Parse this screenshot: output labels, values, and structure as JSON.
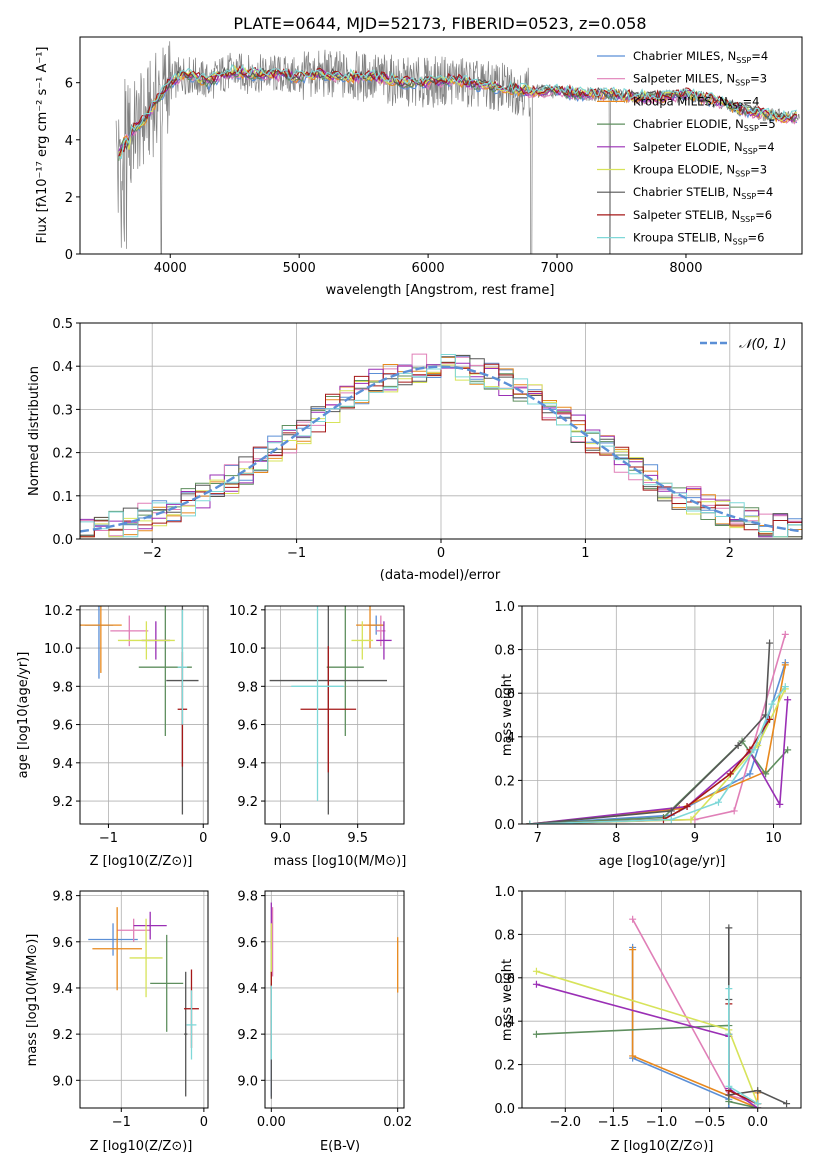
{
  "title": "PLATE=0644, MJD=52173, FIBERID=0523, z=0.058",
  "colors": {
    "palette": [
      "#5b8fd6",
      "#e07fb7",
      "#e8891e",
      "#5f8f5f",
      "#9a2fb5",
      "#d7e35a",
      "#555555",
      "#a51818",
      "#7fd8d8"
    ],
    "data_spectrum": "#808080"
  },
  "chart_data": [
    {
      "id": "spectrum",
      "type": "line",
      "title": "PLATE=0644, MJD=52173, FIBERID=0523, z=0.058",
      "xlabel": "wavelength [Angstrom, rest frame]",
      "ylabel": "Flux [fλ10⁻¹⁷ erg cm⁻² s⁻¹ A⁻¹]",
      "xlim": [
        3300,
        8900
      ],
      "ylim": [
        0,
        7.6
      ],
      "xticks": [
        4000,
        5000,
        6000,
        7000,
        8000
      ],
      "yticks": [
        0,
        2,
        4,
        6
      ],
      "grid": false,
      "legend_position": "top-right",
      "x": [
        3600,
        3650,
        3700,
        3800,
        3900,
        4000,
        4100,
        4200,
        4300,
        4400,
        4500,
        4600,
        4800,
        5000,
        5200,
        5400,
        5600,
        5800,
        6000,
        6200,
        6400,
        6600,
        6800,
        7000,
        7200,
        7400,
        7600,
        7800,
        8000,
        8200,
        8400,
        8600,
        8800
      ],
      "model": [
        3.8,
        4.4,
        4.3,
        4.7,
        5.4,
        6.0,
        6.3,
        6.2,
        6.0,
        6.3,
        6.4,
        6.3,
        6.3,
        6.2,
        6.3,
        6.2,
        6.2,
        6.0,
        6.0,
        6.1,
        5.9,
        5.8,
        5.7,
        5.7,
        5.6,
        5.6,
        5.5,
        5.5,
        5.6,
        5.4,
        5.1,
        4.9,
        4.8
      ],
      "series": [
        {
          "name": "Chabrier MILES, N$_{SSP}$=4",
          "label": "Chabrier MILES, N",
          "sub": "SSP",
          "tail": "=4"
        },
        {
          "name": "Salpeter MILES, N$_{SSP}$=3",
          "label": "Salpeter MILES, N",
          "sub": "SSP",
          "tail": "=3"
        },
        {
          "name": "Kroupa MILES, N$_{SSP}$=4",
          "label": "Kroupa MILES, N",
          "sub": "SSP",
          "tail": "=4"
        },
        {
          "name": "Chabrier ELODIE, N$_{SSP}$=5",
          "label": "Chabrier ELODIE, N",
          "sub": "SSP",
          "tail": "=5"
        },
        {
          "name": "Salpeter ELODIE, N$_{SSP}$=4",
          "label": "Salpeter ELODIE, N",
          "sub": "SSP",
          "tail": "=4"
        },
        {
          "name": "Kroupa ELODIE, N$_{SSP}$=3",
          "label": "Kroupa ELODIE, N",
          "sub": "SSP",
          "tail": "=3"
        },
        {
          "name": "Chabrier STELIB, N$_{SSP}$=4",
          "label": "Chabrier STELIB, N",
          "sub": "SSP",
          "tail": "=4"
        },
        {
          "name": "Salpeter STELIB, N$_{SSP}$=6",
          "label": "Salpeter STELIB, N",
          "sub": "SSP",
          "tail": "=6"
        },
        {
          "name": "Kroupa STELIB, N$_{SSP}$=6",
          "label": "Kroupa STELIB, N",
          "sub": "SSP",
          "tail": "=6"
        }
      ]
    },
    {
      "id": "residuals",
      "type": "line",
      "xlabel": "(data-model)/error",
      "ylabel": "Normed distribution",
      "xlim": [
        -2.5,
        2.5
      ],
      "ylim": [
        0,
        0.5
      ],
      "xticks": [
        -2,
        -1,
        0,
        1,
        2
      ],
      "yticks": [
        0.0,
        0.1,
        0.2,
        0.3,
        0.4,
        0.5
      ],
      "grid": true,
      "legend_position": "top-right",
      "reference_label": "𝒩(0, 1)",
      "bin_width": 0.1,
      "x_start": -2.5
    },
    {
      "id": "age_vs_Z",
      "type": "scatter",
      "xlabel": "Z [log10(Z/Z⊙)]",
      "ylabel": "age  [log10(age/yr)]",
      "xlim": [
        -1.3,
        0.05
      ],
      "ylim": [
        9.08,
        10.22
      ],
      "xticks": [
        -1,
        0
      ],
      "yticks": [
        9.2,
        9.4,
        9.6,
        9.8,
        10.0,
        10.2
      ],
      "grid": true,
      "points": [
        {
          "x": -1.1,
          "y": 10.12,
          "dx": 0.15,
          "dy": 0.28
        },
        {
          "x": -0.78,
          "y": 10.09,
          "dx": 0.2,
          "dy": 0.08
        },
        {
          "x": -1.08,
          "y": 10.12,
          "dx": 0.22,
          "dy": 0.25
        },
        {
          "x": -0.4,
          "y": 9.9,
          "dx": 0.28,
          "dy": 0.36
        },
        {
          "x": -0.5,
          "y": 10.04,
          "dx": 0.15,
          "dy": 0.1
        },
        {
          "x": -0.6,
          "y": 10.04,
          "dx": 0.3,
          "dy": 0.1
        },
        {
          "x": -0.22,
          "y": 9.83,
          "dx": 0.17,
          "dy": 0.7
        },
        {
          "x": -0.22,
          "y": 9.68,
          "dx": 0.05,
          "dy": 0.3
        },
        {
          "x": -0.22,
          "y": 9.9,
          "dx": 0.05,
          "dy": 0.3
        }
      ]
    },
    {
      "id": "age_vs_mass",
      "type": "scatter",
      "xlabel": "mass [log10(M/M⊙)]",
      "ylabel": "",
      "xlim": [
        8.9,
        9.8
      ],
      "ylim": [
        9.08,
        10.22
      ],
      "xticks": [
        9.0,
        9.5
      ],
      "yticks": [
        9.2,
        9.4,
        9.6,
        9.8,
        10.0,
        10.2
      ],
      "grid": true,
      "points": [
        {
          "x": 9.62,
          "y": 10.12,
          "dx": 0.05,
          "dy": 0.05
        },
        {
          "x": 9.65,
          "y": 10.09,
          "dx": 0.03,
          "dy": 0.08
        },
        {
          "x": 9.58,
          "y": 10.12,
          "dx": 0.09,
          "dy": 0.12
        },
        {
          "x": 9.42,
          "y": 9.9,
          "dx": 0.12,
          "dy": 0.36
        },
        {
          "x": 9.67,
          "y": 10.04,
          "dx": 0.05,
          "dy": 0.1
        },
        {
          "x": 9.53,
          "y": 10.04,
          "dx": 0.07,
          "dy": 0.1
        },
        {
          "x": 9.31,
          "y": 9.83,
          "dx": 0.38,
          "dy": 0.7
        },
        {
          "x": 9.31,
          "y": 9.68,
          "dx": 0.18,
          "dy": 0.33
        },
        {
          "x": 9.24,
          "y": 9.8,
          "dx": 0.17,
          "dy": 0.6
        }
      ]
    },
    {
      "id": "weight_vs_age",
      "type": "line",
      "xlabel": "age  [log10(age/yr)]",
      "ylabel": "mass weight",
      "xlim": [
        6.8,
        10.35
      ],
      "ylim": [
        0,
        1.0
      ],
      "xticks": [
        7,
        8,
        9,
        10
      ],
      "yticks": [
        0.0,
        0.2,
        0.4,
        0.6,
        0.8,
        1.0
      ],
      "grid": true,
      "series": [
        {
          "x": [
            6.9,
            8.7,
            9.7,
            10.15
          ],
          "y": [
            0.0,
            0.04,
            0.23,
            0.74
          ]
        },
        {
          "x": [
            6.9,
            9.0,
            9.5,
            10.15
          ],
          "y": [
            0.0,
            0.02,
            0.06,
            0.87
          ]
        },
        {
          "x": [
            6.9,
            8.8,
            9.9,
            10.15
          ],
          "y": [
            0.0,
            0.07,
            0.24,
            0.73
          ]
        },
        {
          "x": [
            6.9,
            8.6,
            9.6,
            9.9,
            10.18
          ],
          "y": [
            0.0,
            0.03,
            0.38,
            0.23,
            0.34
          ]
        },
        {
          "x": [
            6.9,
            8.9,
            9.7,
            10.08,
            10.18
          ],
          "y": [
            0.0,
            0.08,
            0.33,
            0.09,
            0.57
          ]
        },
        {
          "x": [
            6.9,
            8.95,
            9.8,
            10.15
          ],
          "y": [
            0.0,
            0.02,
            0.36,
            0.62
          ]
        },
        {
          "x": [
            6.9,
            8.7,
            9.55,
            9.9,
            9.95
          ],
          "y": [
            0.0,
            0.06,
            0.36,
            0.5,
            0.83
          ]
        },
        {
          "x": [
            6.9,
            8.6,
            8.9,
            9.45,
            9.7,
            9.95
          ],
          "y": [
            0.0,
            0.02,
            0.08,
            0.23,
            0.34,
            0.48
          ]
        },
        {
          "x": [
            6.9,
            8.7,
            9.3,
            9.75,
            9.98,
            10.15
          ],
          "y": [
            0.0,
            0.02,
            0.1,
            0.34,
            0.55,
            0.63
          ]
        }
      ]
    },
    {
      "id": "mass_vs_Z",
      "type": "scatter",
      "xlabel": "Z [log10(Z/Z⊙)]",
      "ylabel": "mass [log10(M/M⊙)]",
      "xlim": [
        -1.5,
        0.05
      ],
      "ylim": [
        8.88,
        9.82
      ],
      "xticks": [
        -1,
        0
      ],
      "yticks": [
        9.0,
        9.2,
        9.4,
        9.6,
        9.8
      ],
      "grid": true,
      "points": [
        {
          "x": -1.1,
          "y": 9.61,
          "dx": 0.3,
          "dy": 0.07
        },
        {
          "x": -0.85,
          "y": 9.65,
          "dx": 0.2,
          "dy": 0.05
        },
        {
          "x": -1.05,
          "y": 9.57,
          "dx": 0.3,
          "dy": 0.18
        },
        {
          "x": -0.45,
          "y": 9.42,
          "dx": 0.2,
          "dy": 0.21
        },
        {
          "x": -0.65,
          "y": 9.67,
          "dx": 0.2,
          "dy": 0.06
        },
        {
          "x": -0.7,
          "y": 9.53,
          "dx": 0.2,
          "dy": 0.17
        },
        {
          "x": -0.22,
          "y": 9.2,
          "dx": 0.02,
          "dy": 0.27
        },
        {
          "x": -0.15,
          "y": 9.31,
          "dx": 0.09,
          "dy": 0.17
        },
        {
          "x": -0.15,
          "y": 9.24,
          "dx": 0.06,
          "dy": 0.15
        }
      ]
    },
    {
      "id": "mass_vs_EBV",
      "type": "scatter",
      "xlabel": "E(B-V)",
      "ylabel": "",
      "xlim": [
        -0.001,
        0.021
      ],
      "ylim": [
        8.88,
        9.82
      ],
      "xticks": [
        0.0,
        0.02
      ],
      "yticks": [
        9.0,
        9.2,
        9.4,
        9.6,
        9.8
      ],
      "grid": true,
      "points": [
        {
          "x": 0.0,
          "y": 9.2,
          "dx": 0,
          "dy": 0.27
        },
        {
          "x": 0.0002,
          "y": 9.6,
          "dx": 0,
          "dy": 0.15
        },
        {
          "x": 0.02,
          "y": 9.5,
          "dx": 0,
          "dy": 0.12
        },
        {
          "x": 0.0,
          "y": 9.45,
          "dx": 0,
          "dy": 0.2
        },
        {
          "x": 0.0,
          "y": 9.67,
          "dx": 0,
          "dy": 0.1
        },
        {
          "x": 0.0,
          "y": 9.55,
          "dx": 0,
          "dy": 0.13
        },
        {
          "x": 0.0,
          "y": 9.1,
          "dx": 0,
          "dy": 0.18
        },
        {
          "x": 0.0,
          "y": 9.3,
          "dx": 0,
          "dy": 0.17
        },
        {
          "x": 0.0,
          "y": 9.25,
          "dx": 0,
          "dy": 0.16
        }
      ]
    },
    {
      "id": "weight_vs_Z",
      "type": "line",
      "xlabel": "Z [log10(Z/Z⊙)]",
      "ylabel": "mass weight",
      "xlim": [
        -2.45,
        0.45
      ],
      "ylim": [
        0,
        1.0
      ],
      "xticks": [
        -2.0,
        -1.5,
        -1.0,
        -0.5,
        0.0
      ],
      "yticks": [
        0.0,
        0.2,
        0.4,
        0.6,
        0.8,
        1.0
      ],
      "grid": true,
      "series": [
        {
          "x": [
            -1.3,
            -1.3,
            -0.3,
            -0.3,
            0.0
          ],
          "y": [
            0.74,
            0.23,
            0.04,
            0.0,
            0.0
          ]
        },
        {
          "x": [
            -1.3,
            -0.3,
            0.0
          ],
          "y": [
            0.87,
            0.06,
            0.02
          ]
        },
        {
          "x": [
            -1.3,
            -1.3,
            0.0,
            0.0
          ],
          "y": [
            0.73,
            0.24,
            0.0,
            0.07
          ]
        },
        {
          "x": [
            -2.3,
            -0.3,
            -0.3,
            0.0
          ],
          "y": [
            0.34,
            0.38,
            0.03,
            0.0
          ]
        },
        {
          "x": [
            -2.3,
            -0.3,
            -0.3,
            0.0
          ],
          "y": [
            0.57,
            0.33,
            0.09,
            0.0
          ]
        },
        {
          "x": [
            -2.3,
            -0.3,
            0.0
          ],
          "y": [
            0.63,
            0.36,
            0.02
          ]
        },
        {
          "x": [
            -0.3,
            -0.3,
            -0.3,
            0.0,
            0.3
          ],
          "y": [
            0.83,
            0.5,
            0.06,
            0.08,
            0.02
          ]
        },
        {
          "x": [
            -0.3,
            -0.3,
            -0.3,
            0.0
          ],
          "y": [
            0.48,
            0.34,
            0.08,
            0.02
          ]
        },
        {
          "x": [
            -0.3,
            -0.3,
            -0.3,
            0.0
          ],
          "y": [
            0.55,
            0.34,
            0.1,
            0.02
          ]
        }
      ]
    }
  ]
}
